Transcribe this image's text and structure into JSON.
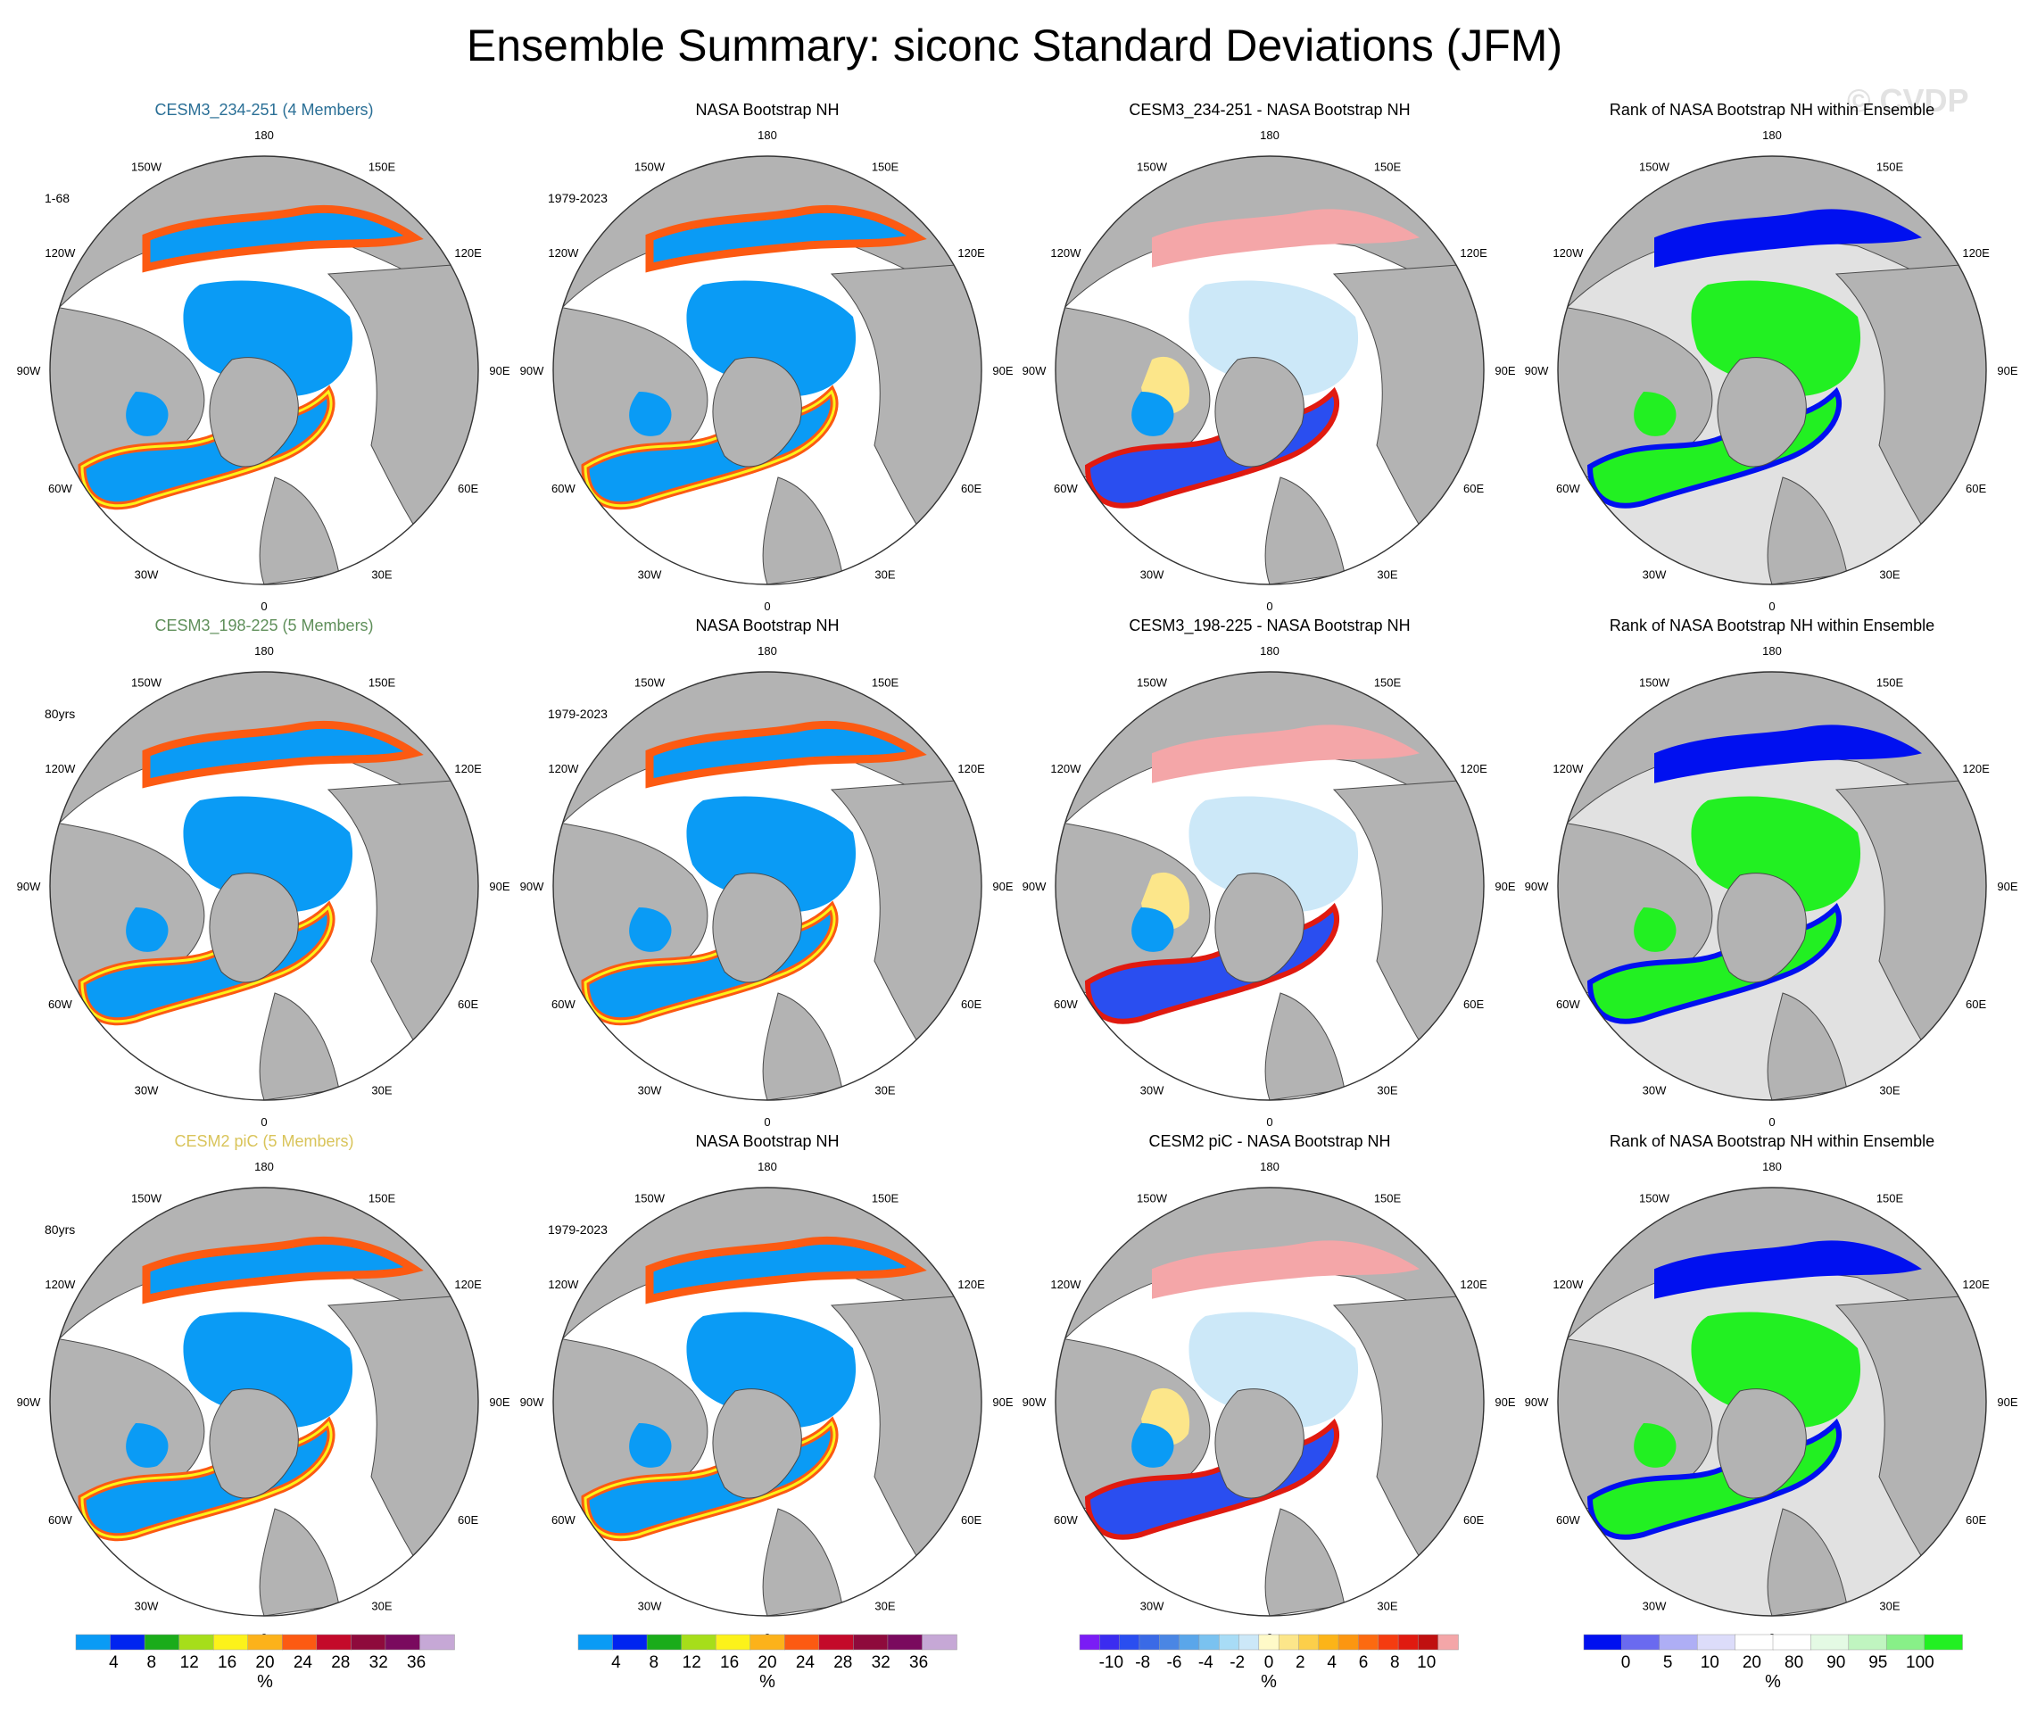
{
  "title": "Ensemble Summary: siconc Standard Deviations (JFM)",
  "watermark": "© CVDP",
  "lon_labels": {
    "180": "180",
    "150E": "150E",
    "120E": "120E",
    "90E": "90E",
    "60E": "60E",
    "30E": "30E",
    "0": "0",
    "30W": "30W",
    "60W": "60W",
    "90W": "90W",
    "120W": "120W",
    "150W": "150W"
  },
  "rows": [
    {
      "panels": [
        {
          "title": "CESM3_234-251 (4 Members)",
          "title_color": "#2a6f96",
          "years": "1-68",
          "type": "model"
        },
        {
          "title": "NASA Bootstrap NH",
          "title_color": "#000000",
          "years": "1979-2023",
          "type": "obs"
        },
        {
          "title": "CESM3_234-251 - NASA Bootstrap NH",
          "title_color": "#000000",
          "years": "",
          "type": "diff"
        },
        {
          "title": "Rank of NASA Bootstrap NH within Ensemble",
          "title_color": "#000000",
          "years": "",
          "type": "rank"
        }
      ]
    },
    {
      "panels": [
        {
          "title": "CESM3_198-225 (5 Members)",
          "title_color": "#5f8f5a",
          "years": "80yrs",
          "type": "model"
        },
        {
          "title": "NASA Bootstrap NH",
          "title_color": "#000000",
          "years": "1979-2023",
          "type": "obs"
        },
        {
          "title": "CESM3_198-225 - NASA Bootstrap NH",
          "title_color": "#000000",
          "years": "",
          "type": "diff"
        },
        {
          "title": "Rank of NASA Bootstrap NH within Ensemble",
          "title_color": "#000000",
          "years": "",
          "type": "rank"
        }
      ]
    },
    {
      "panels": [
        {
          "title": "CESM2 piC (5 Members)",
          "title_color": "#d9c45a",
          "years": "80yrs",
          "type": "model"
        },
        {
          "title": "NASA Bootstrap NH",
          "title_color": "#000000",
          "years": "1979-2023",
          "type": "obs"
        },
        {
          "title": "CESM2 piC - NASA Bootstrap NH",
          "title_color": "#000000",
          "years": "",
          "type": "diff"
        },
        {
          "title": "Rank of NASA Bootstrap NH within Ensemble",
          "title_color": "#000000",
          "years": "",
          "type": "rank"
        }
      ]
    }
  ],
  "colorbars": [
    {
      "unit": "%",
      "colors": [
        "#0a9bf5",
        "#0024f0",
        "#1aac1a",
        "#a6de1a",
        "#fcf21a",
        "#fcb21a",
        "#fc5a12",
        "#c40a2a",
        "#8e0a3c",
        "#7a0a5e",
        "#c6a8d6"
      ],
      "labels": [
        "4",
        "8",
        "12",
        "16",
        "20",
        "24",
        "28",
        "32",
        "36"
      ]
    },
    {
      "unit": "%",
      "colors": [
        "#0a9bf5",
        "#0024f0",
        "#1aac1a",
        "#a6de1a",
        "#fcf21a",
        "#fcb21a",
        "#fc5a12",
        "#c40a2a",
        "#8e0a3c",
        "#7a0a5e",
        "#c6a8d6"
      ],
      "labels": [
        "4",
        "8",
        "12",
        "16",
        "20",
        "24",
        "28",
        "32",
        "36"
      ]
    },
    {
      "unit": "%",
      "colors": [
        "#7a1cf5",
        "#3b2cf0",
        "#2a4ef0",
        "#3a6ae6",
        "#4a86e4",
        "#5aa6ea",
        "#7ac2f0",
        "#a8dcf6",
        "#cce8f8",
        "#fffac8",
        "#fce68a",
        "#fccf4a",
        "#fcb418",
        "#fc9610",
        "#fc6a10",
        "#f53c10",
        "#e01a10",
        "#c01010",
        "#f4a6a8"
      ],
      "labels": [
        "-10",
        "-8",
        "-6",
        "-4",
        "-2",
        "0",
        "2",
        "4",
        "6",
        "8",
        "10"
      ]
    },
    {
      "unit": "%",
      "colors": [
        "#0010f0",
        "#6a6af0",
        "#aeaef5",
        "#dcdcfa",
        "#ffffff",
        "#ffffff",
        "#e4fae4",
        "#c0f5c0",
        "#88f088",
        "#22f022"
      ],
      "labels": [
        "0",
        "5",
        "10",
        "20",
        "80",
        "90",
        "95",
        "100"
      ]
    }
  ]
}
